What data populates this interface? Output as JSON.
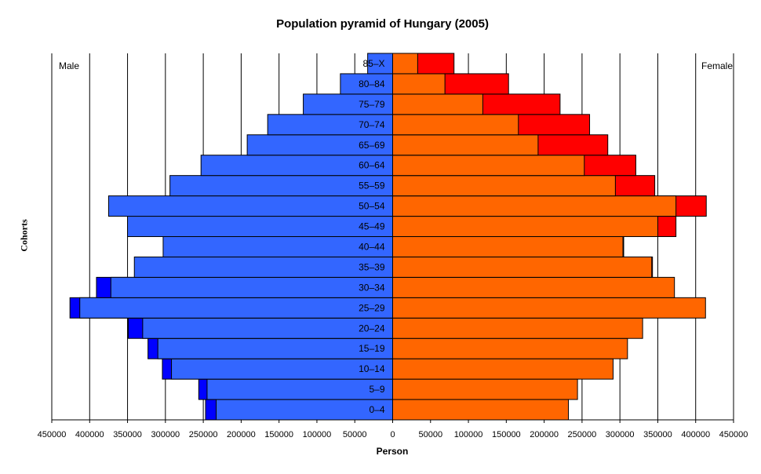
{
  "chart_data": {
    "type": "bar",
    "orientation": "horizontal",
    "title": "Population pyramid of Hungary (2005)",
    "xlabel": "Person",
    "ylabel": "Cohorts",
    "categories": [
      "0–4",
      "5–9",
      "10–14",
      "15–19",
      "20–24",
      "25–29",
      "30–34",
      "35–39",
      "40–44",
      "45–49",
      "50–54",
      "55–59",
      "60–64",
      "65–69",
      "70–74",
      "75–79",
      "80–84",
      "85–X"
    ],
    "left_label": "Male",
    "right_label": "Female",
    "x_ticks": [
      450000,
      400000,
      350000,
      300000,
      250000,
      200000,
      150000,
      100000,
      50000,
      0,
      50000,
      100000,
      150000,
      200000,
      250000,
      300000,
      350000,
      400000,
      450000
    ],
    "xlim": [
      -450000,
      450000
    ],
    "grid": true,
    "series": [
      {
        "side": "male",
        "color": "#3366ff",
        "values": [
          233000,
          245000,
          292000,
          310000,
          330000,
          413000,
          372000,
          341000,
          303000,
          350000,
          375000,
          294000,
          253000,
          192000,
          165000,
          118000,
          69000,
          33000
        ]
      },
      {
        "side": "male_excess",
        "color": "#0000ff",
        "values": [
          247000,
          256000,
          304000,
          323000,
          349000,
          426000,
          391000,
          341000,
          303000,
          350000,
          375000,
          294000,
          253000,
          192000,
          165000,
          118000,
          69000,
          33000
        ]
      },
      {
        "side": "female",
        "color": "#ff6600",
        "values": [
          232000,
          244000,
          291000,
          310000,
          330000,
          413000,
          372000,
          342000,
          304000,
          350000,
          374000,
          294000,
          253000,
          192000,
          166000,
          119000,
          69000,
          33000
        ]
      },
      {
        "side": "female_excess",
        "color": "#ff0000",
        "values": [
          232000,
          244000,
          291000,
          310000,
          330000,
          413000,
          372000,
          343000,
          305000,
          374000,
          414000,
          346000,
          321000,
          284000,
          260000,
          221000,
          153000,
          81000
        ]
      }
    ]
  }
}
